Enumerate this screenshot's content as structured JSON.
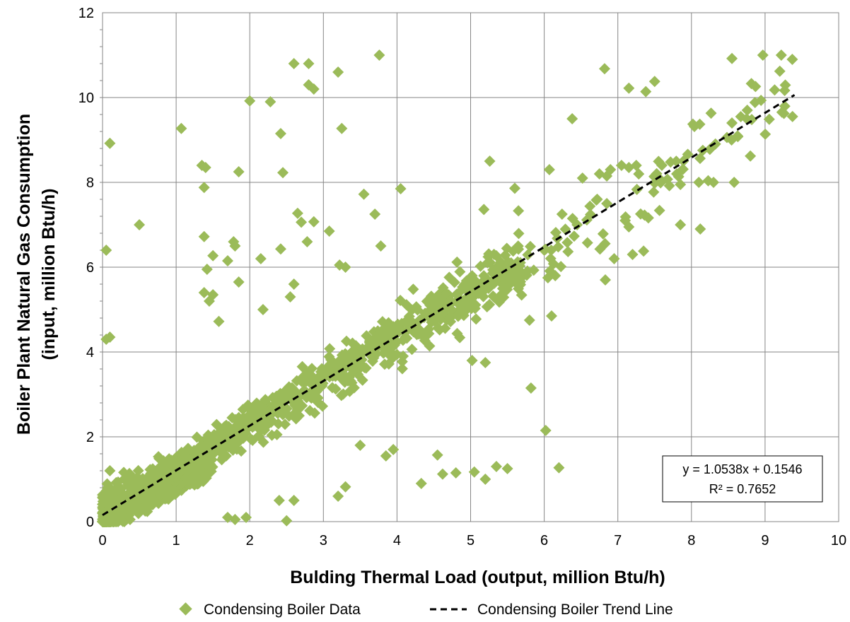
{
  "chart_data": {
    "type": "scatter",
    "xlabel": "Bulding Thermal Load (output, million Btu/h)",
    "ylabel_line1": "Boiler Plant Natural Gas Consumption",
    "ylabel_line2": "(input, million Btu/h)",
    "xlim": [
      0,
      10
    ],
    "ylim": [
      0,
      12
    ],
    "x_ticks": [
      "0",
      "1",
      "2",
      "3",
      "4",
      "5",
      "6",
      "7",
      "8",
      "9",
      "10"
    ],
    "y_ticks": [
      "0",
      "2",
      "4",
      "6",
      "8",
      "10",
      "12"
    ],
    "grid": true,
    "marker_color": "#9BBB59",
    "series": [
      {
        "name": "Condensing Boiler Data",
        "points": [
          [
            0.05,
            6.4
          ],
          [
            0.1,
            8.92
          ],
          [
            0.05,
            4.3
          ],
          [
            0.1,
            4.35
          ],
          [
            0.5,
            7.0
          ],
          [
            1.07,
            9.27
          ],
          [
            1.35,
            8.4
          ],
          [
            1.4,
            8.35
          ],
          [
            1.38,
            7.88
          ],
          [
            1.85,
            8.25
          ],
          [
            2.0,
            9.92
          ],
          [
            2.28,
            9.9
          ],
          [
            2.42,
            9.15
          ],
          [
            2.45,
            8.23
          ],
          [
            2.6,
            10.8
          ],
          [
            2.8,
            10.8
          ],
          [
            2.8,
            10.3
          ],
          [
            2.87,
            10.2
          ],
          [
            3.2,
            10.6
          ],
          [
            3.25,
            9.27
          ],
          [
            3.76,
            11.0
          ],
          [
            6.82,
            10.68
          ],
          [
            7.15,
            10.22
          ],
          [
            7.38,
            10.14
          ],
          [
            7.5,
            10.38
          ],
          [
            8.55,
            10.92
          ],
          [
            8.97,
            11.0
          ],
          [
            9.22,
            11.0
          ],
          [
            9.37,
            10.9
          ],
          [
            9.2,
            10.62
          ],
          [
            9.13,
            10.18
          ],
          [
            8.87,
            10.26
          ],
          [
            8.67,
            9.55
          ],
          [
            8.75,
            9.5
          ],
          [
            8.55,
            9.4
          ],
          [
            8.63,
            9.08
          ],
          [
            8.25,
            8.78
          ],
          [
            7.95,
            8.66
          ],
          [
            6.38,
            9.5
          ],
          [
            6.07,
            8.3
          ],
          [
            5.26,
            8.5
          ],
          [
            5.6,
            7.86
          ],
          [
            5.65,
            7.33
          ],
          [
            5.18,
            7.36
          ],
          [
            4.05,
            7.85
          ],
          [
            3.55,
            7.72
          ],
          [
            3.7,
            7.25
          ],
          [
            3.78,
            6.5
          ],
          [
            2.65,
            7.27
          ],
          [
            2.7,
            7.06
          ],
          [
            2.87,
            7.07
          ],
          [
            2.78,
            6.6
          ],
          [
            3.08,
            6.85
          ],
          [
            1.78,
            6.6
          ],
          [
            1.8,
            6.5
          ],
          [
            2.15,
            6.2
          ],
          [
            2.42,
            6.43
          ],
          [
            1.38,
            6.72
          ],
          [
            1.5,
            6.27
          ],
          [
            1.7,
            6.15
          ],
          [
            1.42,
            5.95
          ],
          [
            1.85,
            5.65
          ],
          [
            1.38,
            5.4
          ],
          [
            1.45,
            5.2
          ],
          [
            1.5,
            5.35
          ],
          [
            1.58,
            4.72
          ],
          [
            2.6,
            5.6
          ],
          [
            3.22,
            6.05
          ],
          [
            3.3,
            6.0
          ],
          [
            2.18,
            5.0
          ],
          [
            2.55,
            5.3
          ],
          [
            6.52,
            8.1
          ],
          [
            6.9,
            8.3
          ],
          [
            7.05,
            8.4
          ],
          [
            7.15,
            8.35
          ],
          [
            7.25,
            8.4
          ],
          [
            6.75,
            8.2
          ],
          [
            6.85,
            8.15
          ],
          [
            7.8,
            8.2
          ],
          [
            7.85,
            7.95
          ],
          [
            8.1,
            8.0
          ],
          [
            8.3,
            8.0
          ],
          [
            8.58,
            8.0
          ],
          [
            7.7,
            7.92
          ],
          [
            6.72,
            7.6
          ],
          [
            6.85,
            7.5
          ],
          [
            7.1,
            7.1
          ],
          [
            7.15,
            6.95
          ],
          [
            7.85,
            7.0
          ],
          [
            8.12,
            6.9
          ],
          [
            6.95,
            6.2
          ],
          [
            7.35,
            6.38
          ],
          [
            7.2,
            6.3
          ],
          [
            6.83,
            5.7
          ],
          [
            6.0,
            6.4
          ],
          [
            6.15,
            5.8
          ],
          [
            6.05,
            5.75
          ],
          [
            6.1,
            4.85
          ],
          [
            5.8,
            4.75
          ],
          [
            5.82,
            3.15
          ],
          [
            6.02,
            2.15
          ],
          [
            6.2,
            1.27
          ],
          [
            5.5,
            1.25
          ],
          [
            5.35,
            1.3
          ],
          [
            5.2,
            1.0
          ],
          [
            5.05,
            1.17
          ],
          [
            4.8,
            1.15
          ],
          [
            4.62,
            1.12
          ],
          [
            4.55,
            1.57
          ],
          [
            4.33,
            0.9
          ],
          [
            5.2,
            3.75
          ],
          [
            5.02,
            3.8
          ],
          [
            0.1,
            1.2
          ],
          [
            0.2,
            0.8
          ],
          [
            0.6,
            0.9
          ],
          [
            0.8,
            1.2
          ],
          [
            1.2,
            1.0
          ],
          [
            1.8,
            0.05
          ],
          [
            2.5,
            0.02
          ],
          [
            1.7,
            0.1
          ],
          [
            1.95,
            0.1
          ],
          [
            2.4,
            0.5
          ],
          [
            2.6,
            0.5
          ],
          [
            3.3,
            0.82
          ],
          [
            3.85,
            1.55
          ],
          [
            3.95,
            1.7
          ],
          [
            3.5,
            1.8
          ],
          [
            3.2,
            0.6
          ]
        ]
      },
      {
        "name": "Condensing Boiler Trend Line",
        "slope": 1.0538,
        "intercept": 0.1546,
        "x_range": [
          0,
          9.4
        ]
      }
    ],
    "trendline_label_line1": "y = 1.0538x + 0.1546",
    "trendline_label_line2": "R² = 0.7652",
    "legend": {
      "placement": "bottom",
      "items": [
        "Condensing Boiler Data",
        "Condensing Boiler Trend Line"
      ]
    }
  }
}
